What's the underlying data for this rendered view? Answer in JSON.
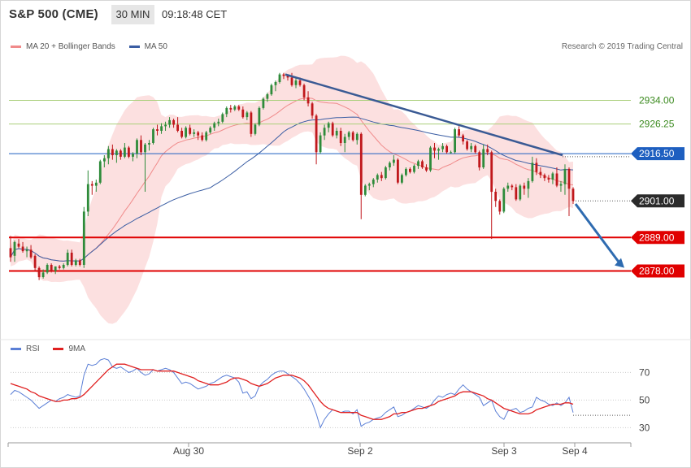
{
  "header": {
    "symbol": "S&P 500 (CME)",
    "timeframe": "30 MIN",
    "time": "09:18:48 CET"
  },
  "legend": {
    "ma20_label": "MA 20 + Bollinger Bands",
    "ma20_color": "#f08a8a",
    "ma50_label": "MA 50",
    "ma50_color": "#3a5da3"
  },
  "credit": "Research © 2019 Trading Central",
  "rsi_legend": {
    "rsi_label": "RSI",
    "rsi_color": "#5b7fd6",
    "ma_label": "9MA",
    "ma_color": "#e02020"
  },
  "chart_data": [
    {
      "type": "candlestick",
      "title": "S&P 500 (CME)",
      "ylim": [
        2856,
        2944
      ],
      "x_labels": [
        "Aug 30",
        "Sep 2",
        "Sep 3",
        "Sep 4"
      ],
      "levels": [
        {
          "value": 2934.0,
          "label": "2934.00",
          "color": "#a9cf7a",
          "text_color": "#3b8a1f",
          "style": "green"
        },
        {
          "value": 2926.25,
          "label": "2926.25",
          "color": "#a9cf7a",
          "text_color": "#3b8a1f",
          "style": "green"
        },
        {
          "value": 2916.5,
          "label": "2916.50",
          "color": "#1e5fc0",
          "text_color": "#ffffff",
          "style": "blue-tag"
        },
        {
          "value": 2901.0,
          "label": "2901.00",
          "color": "#2b2b2b",
          "text_color": "#ffffff",
          "style": "last-price",
          "dotted": true
        },
        {
          "value": 2889.0,
          "label": "2889.00",
          "color": "#e00000",
          "text_color": "#ffffff",
          "style": "red-tag"
        },
        {
          "value": 2878.0,
          "label": "2878.00",
          "color": "#e00000",
          "text_color": "#ffffff",
          "style": "red-tag"
        }
      ],
      "trendline": {
        "from": [
          0,
          2942.5
        ],
        "to": [
          1,
          2916.0
        ],
        "color": "#3a5a94"
      },
      "projection": {
        "from": [
          0,
          2900.0
        ],
        "to": [
          1,
          2878.5
        ],
        "color": "#2e6bb0"
      },
      "candles": [
        [
          2885.5,
          2889.5,
          2881,
          2882.5
        ],
        [
          2883,
          2888,
          2881,
          2887.5
        ],
        [
          2887,
          2888.5,
          2885.5,
          2886
        ],
        [
          2886,
          2887.5,
          2884,
          2884.5
        ],
        [
          2884.5,
          2886,
          2882.5,
          2885
        ],
        [
          2885,
          2886.5,
          2882,
          2882.5
        ],
        [
          2883,
          2883.5,
          2878,
          2879
        ],
        [
          2879,
          2879.5,
          2875,
          2876
        ],
        [
          2876,
          2878.5,
          2875.5,
          2877.5
        ],
        [
          2877.5,
          2880.5,
          2877,
          2880
        ],
        [
          2880,
          2880.5,
          2877.5,
          2878
        ],
        [
          2878,
          2879.5,
          2877,
          2879.5
        ],
        [
          2879.5,
          2880,
          2878.5,
          2879
        ],
        [
          2879,
          2880.5,
          2878.5,
          2880
        ],
        [
          2880,
          2885,
          2879.5,
          2884
        ],
        [
          2884,
          2885,
          2879.5,
          2880
        ],
        [
          2880,
          2882,
          2879.5,
          2881.5
        ],
        [
          2881.5,
          2882,
          2879.5,
          2880
        ],
        [
          2880,
          2899,
          2879,
          2897.5
        ],
        [
          2897.5,
          2911,
          2896,
          2906.5
        ],
        [
          2906.5,
          2907.5,
          2903,
          2906
        ],
        [
          2906,
          2908,
          2904,
          2907
        ],
        [
          2907,
          2914.5,
          2906.5,
          2914
        ],
        [
          2914,
          2916,
          2912,
          2915
        ],
        [
          2915,
          2919,
          2913,
          2918
        ],
        [
          2918,
          2919.5,
          2914.5,
          2916
        ],
        [
          2916,
          2918,
          2913.5,
          2917.5
        ],
        [
          2917.5,
          2918,
          2914.5,
          2915.5
        ],
        [
          2915.5,
          2920,
          2915,
          2918.5
        ],
        [
          2918.5,
          2919,
          2915,
          2915.5
        ],
        [
          2915.5,
          2917,
          2914,
          2916.5
        ],
        [
          2916.5,
          2921.5,
          2915,
          2921
        ],
        [
          2921,
          2922.5,
          2916,
          2917
        ],
        [
          2917,
          2920,
          2904,
          2919.5
        ],
        [
          2919.5,
          2921,
          2917.5,
          2920
        ],
        [
          2920,
          2925,
          2919.5,
          2924.5
        ],
        [
          2924.5,
          2926,
          2922.5,
          2924
        ],
        [
          2924,
          2926.5,
          2923,
          2925.5
        ],
        [
          2925.5,
          2927,
          2924,
          2926
        ],
        [
          2926,
          2928.5,
          2925,
          2927.5
        ],
        [
          2927.5,
          2928,
          2925,
          2926
        ],
        [
          2926,
          2928.5,
          2923.5,
          2924
        ],
        [
          2924,
          2925,
          2921.5,
          2922
        ],
        [
          2922,
          2925.5,
          2921.5,
          2925
        ],
        [
          2925,
          2926,
          2922.5,
          2923
        ],
        [
          2923,
          2924.5,
          2922,
          2923.5
        ],
        [
          2923.5,
          2924,
          2921,
          2922.5
        ],
        [
          2922.5,
          2923.5,
          2920.5,
          2921
        ],
        [
          2921,
          2924,
          2920.5,
          2923.5
        ],
        [
          2923.5,
          2925.5,
          2923,
          2925
        ],
        [
          2925,
          2927,
          2924,
          2926.5
        ],
        [
          2926.5,
          2928,
          2925.5,
          2927
        ],
        [
          2927,
          2930,
          2926.5,
          2929.5
        ],
        [
          2929.5,
          2932,
          2928.5,
          2931.5
        ],
        [
          2931.5,
          2932.5,
          2930,
          2931
        ],
        [
          2931,
          2932.5,
          2930.5,
          2932
        ],
        [
          2932,
          2932.5,
          2930.5,
          2931
        ],
        [
          2931,
          2932,
          2928,
          2928.5
        ],
        [
          2928.5,
          2930.5,
          2927.5,
          2930
        ],
        [
          2930,
          2930.5,
          2922,
          2923
        ],
        [
          2923,
          2926.5,
          2922.5,
          2926
        ],
        [
          2926,
          2932,
          2925.5,
          2931.5
        ],
        [
          2931.5,
          2935,
          2931,
          2934.5
        ],
        [
          2934.5,
          2936.5,
          2933.5,
          2936
        ],
        [
          2936,
          2939.5,
          2935.5,
          2939
        ],
        [
          2939,
          2940.5,
          2937,
          2940
        ],
        [
          2940,
          2943,
          2939.5,
          2942.5
        ],
        [
          2942.5,
          2943,
          2941,
          2942
        ],
        [
          2942,
          2942.5,
          2940.5,
          2941.5
        ],
        [
          2941.5,
          2943,
          2938.5,
          2939
        ],
        [
          2939,
          2941.5,
          2938,
          2940.5
        ],
        [
          2940.5,
          2941.5,
          2938.5,
          2939
        ],
        [
          2939,
          2939.5,
          2934,
          2935
        ],
        [
          2935,
          2937,
          2932,
          2933
        ],
        [
          2933,
          2933.5,
          2928,
          2929
        ],
        [
          2929,
          2929.5,
          2913,
          2917
        ],
        [
          2917,
          2923.5,
          2916.5,
          2922.5
        ],
        [
          2922.5,
          2926,
          2921,
          2925
        ],
        [
          2925,
          2927,
          2923.5,
          2926.5
        ],
        [
          2926.5,
          2927,
          2922,
          2922.5
        ],
        [
          2922.5,
          2925,
          2921.5,
          2924
        ],
        [
          2924,
          2925,
          2919,
          2920
        ],
        [
          2920,
          2923,
          2917,
          2922
        ],
        [
          2922,
          2924,
          2921,
          2923.5
        ],
        [
          2923.5,
          2924,
          2920.5,
          2921
        ],
        [
          2921,
          2923.5,
          2919.5,
          2923
        ],
        [
          2923,
          2923.5,
          2895,
          2903
        ],
        [
          2903,
          2906.5,
          2902.5,
          2906
        ],
        [
          2906,
          2907,
          2904.5,
          2906.5
        ],
        [
          2906.5,
          2908.5,
          2905.5,
          2908
        ],
        [
          2908,
          2910,
          2907,
          2909.5
        ],
        [
          2909.5,
          2910.5,
          2907.5,
          2908.5
        ],
        [
          2908.5,
          2912.5,
          2908,
          2912
        ],
        [
          2912,
          2914,
          2911,
          2913.5
        ],
        [
          2913.5,
          2916,
          2912.5,
          2914.5
        ],
        [
          2914.5,
          2915,
          2906.5,
          2907
        ],
        [
          2907,
          2910,
          2906.5,
          2909.5
        ],
        [
          2909.5,
          2912,
          2909,
          2911.5
        ],
        [
          2911.5,
          2912,
          2910,
          2910.5
        ],
        [
          2910.5,
          2913,
          2910,
          2912.5
        ],
        [
          2912.5,
          2914.5,
          2911.5,
          2914
        ],
        [
          2914,
          2914.5,
          2911.5,
          2912
        ],
        [
          2912,
          2913,
          2910.5,
          2911
        ],
        [
          2911,
          2919,
          2910.5,
          2918.5
        ],
        [
          2918.5,
          2920,
          2915,
          2917.5
        ],
        [
          2917.5,
          2918.5,
          2914.5,
          2918
        ],
        [
          2918,
          2920,
          2917,
          2919
        ],
        [
          2919,
          2919.5,
          2916.5,
          2917
        ],
        [
          2917,
          2917.5,
          2916.5,
          2917
        ],
        [
          2917,
          2925,
          2916.5,
          2924.5
        ],
        [
          2924.5,
          2925.5,
          2922,
          2922.5
        ],
        [
          2922.5,
          2923,
          2919.5,
          2920.5
        ],
        [
          2920.5,
          2921,
          2917.5,
          2918
        ],
        [
          2918,
          2920,
          2917,
          2919
        ],
        [
          2919,
          2919.5,
          2916.5,
          2917
        ],
        [
          2917,
          2917.5,
          2911,
          2912
        ],
        [
          2912,
          2919.5,
          2911.5,
          2918
        ],
        [
          2918,
          2919.5,
          2916,
          2917
        ],
        [
          2917,
          2917.5,
          2888.5,
          2904
        ],
        [
          2904,
          2905,
          2899,
          2901
        ],
        [
          2901,
          2901.5,
          2896.5,
          2897.5
        ],
        [
          2897.5,
          2905.5,
          2897,
          2905
        ],
        [
          2905,
          2907,
          2904,
          2906
        ],
        [
          2906,
          2906.5,
          2904.5,
          2905.5
        ],
        [
          2905.5,
          2906.5,
          2901,
          2901.5
        ],
        [
          2901.5,
          2906.5,
          2901,
          2906
        ],
        [
          2906,
          2907,
          2903,
          2905
        ],
        [
          2905,
          2908.5,
          2902,
          2907.5
        ],
        [
          2907.5,
          2915.5,
          2907,
          2913.5
        ],
        [
          2913.5,
          2915,
          2909.5,
          2910.5
        ],
        [
          2910.5,
          2912,
          2908.5,
          2909.5
        ],
        [
          2909.5,
          2910,
          2907.5,
          2908.5
        ],
        [
          2908.5,
          2909.5,
          2907,
          2908
        ],
        [
          2908,
          2910.5,
          2906.5,
          2910
        ],
        [
          2910,
          2912,
          2905.5,
          2906
        ],
        [
          2906,
          2907.5,
          2904,
          2906.5
        ],
        [
          2906.5,
          2913,
          2903,
          2911.5
        ],
        [
          2911.5,
          2912,
          2896,
          2905
        ],
        [
          2905,
          2905.5,
          2900,
          2901
        ]
      ]
    },
    {
      "type": "line",
      "title": "RSI",
      "ylim": [
        22,
        82
      ],
      "yticks": [
        30,
        50,
        70
      ],
      "series": [
        {
          "name": "RSI",
          "color": "#5b7fd6",
          "values": [
            54,
            57,
            56,
            54,
            52,
            50,
            47,
            44,
            46,
            48,
            50,
            49,
            51,
            52,
            54,
            53,
            52,
            53,
            68,
            76,
            75,
            76,
            79,
            80,
            79,
            74,
            73,
            74,
            72,
            70,
            71,
            73,
            70,
            68,
            69,
            72,
            71,
            72,
            73,
            72,
            70,
            66,
            62,
            63,
            62,
            60,
            58,
            59,
            60,
            62,
            63,
            65,
            67,
            68,
            67,
            66,
            63,
            55,
            56,
            51,
            53,
            60,
            63,
            65,
            68,
            70,
            71,
            71,
            69,
            67,
            65,
            62,
            58,
            53,
            48,
            40,
            30,
            36,
            40,
            43,
            42,
            41,
            42,
            42,
            40,
            43,
            31,
            33,
            34,
            36,
            37,
            38,
            41,
            43,
            45,
            38,
            39,
            41,
            42,
            44,
            46,
            45,
            44,
            46,
            50,
            53,
            52,
            54,
            55,
            54,
            58,
            61,
            58,
            56,
            54,
            52,
            46,
            48,
            50,
            42,
            38,
            36,
            42,
            43,
            44,
            41,
            42,
            44,
            45,
            52,
            50,
            49,
            47,
            46,
            48,
            46,
            48,
            52,
            41
          ]
        },
        {
          "name": "9MA",
          "color": "#e02020",
          "values": [
            62,
            61,
            60,
            59,
            58,
            56,
            55,
            53,
            52,
            51,
            50,
            49,
            49,
            50,
            50,
            51,
            51,
            52,
            54,
            57,
            60,
            63,
            66,
            69,
            72,
            74,
            76,
            76,
            76,
            75,
            74,
            73,
            72,
            72,
            72,
            72,
            71,
            71,
            71,
            71,
            71,
            70,
            69,
            68,
            67,
            66,
            64,
            63,
            62,
            61,
            61,
            61,
            62,
            63,
            65,
            66,
            66,
            65,
            64,
            62,
            61,
            60,
            61,
            62,
            64,
            66,
            67,
            68,
            68,
            68,
            67,
            66,
            64,
            61,
            57,
            53,
            49,
            46,
            44,
            43,
            42,
            41,
            41,
            41,
            41,
            41,
            39,
            38,
            37,
            36,
            36,
            36,
            37,
            38,
            40,
            40,
            41,
            41,
            42,
            43,
            44,
            44,
            45,
            46,
            47,
            49,
            50,
            51,
            52,
            53,
            55,
            56,
            56,
            56,
            55,
            54,
            53,
            51,
            50,
            48,
            46,
            44,
            43,
            42,
            41,
            40,
            40,
            40,
            41,
            43,
            44,
            45,
            46,
            47,
            47,
            47,
            48,
            48,
            47
          ]
        }
      ]
    }
  ]
}
